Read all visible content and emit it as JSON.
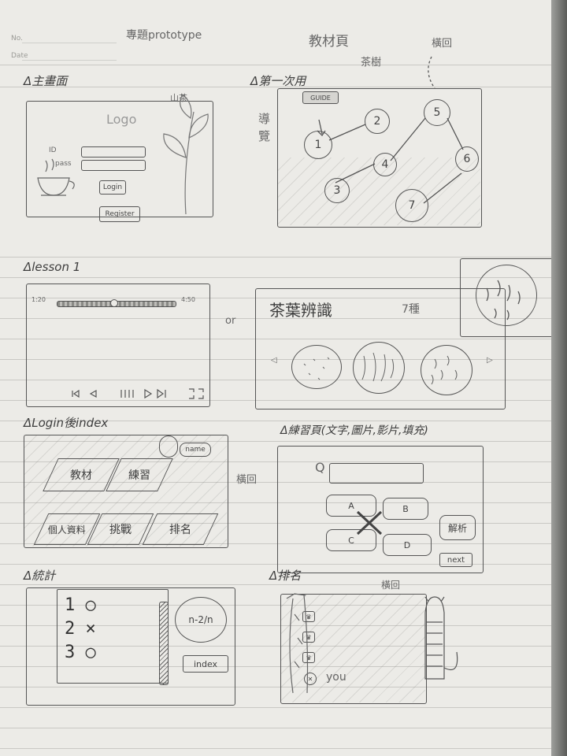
{
  "header": {
    "no_label": "No.",
    "date_label": "Date",
    "project_title": "專題prototype",
    "materials_page_note": "教材頁"
  },
  "home": {
    "label": "主畫面",
    "logo_text": "Logo",
    "id_label": "ID",
    "pass_label": "pass",
    "login_button": "Login",
    "register_button": "Register",
    "plant_note": "山茶"
  },
  "first_use": {
    "label": "第一次用",
    "guide_badge": "GUIDE",
    "guide_label": "導覽",
    "node_labels": [
      "1",
      "2",
      "3",
      "4",
      "5",
      "6",
      "7"
    ],
    "tea_note": "茶樹",
    "horizontal_note": "橫回"
  },
  "lesson": {
    "label": "lesson 1",
    "time_start": "1:20",
    "time_end": "4:50",
    "or_label": "or",
    "tea_title": "茶葉辨識",
    "types_count": "7種"
  },
  "login_index": {
    "label": "Login後index",
    "name_label": "name",
    "tiles": [
      "教材",
      "練習",
      "個人資料",
      "挑戰",
      "排名"
    ],
    "horizontal_note": "橫回"
  },
  "practice": {
    "label": "練習頁(文字,圖片,影片,填充)",
    "q_label": "Q",
    "options": [
      "A",
      "B",
      "C",
      "D"
    ],
    "explain_button": "解析",
    "next_button": "next"
  },
  "stats": {
    "label": "統計",
    "rows": [
      {
        "num": "1",
        "mark": "○"
      },
      {
        "num": "2",
        "mark": "×"
      },
      {
        "num": "3",
        "mark": "○"
      }
    ],
    "score": "n-2/n",
    "index_button": "index"
  },
  "ranking": {
    "label": "排名",
    "horizontal_note": "橫回",
    "you_label": "you"
  },
  "colors": {
    "paper": "#ecebe7",
    "pencil": "#555555",
    "rule": "#c9c8c4"
  }
}
